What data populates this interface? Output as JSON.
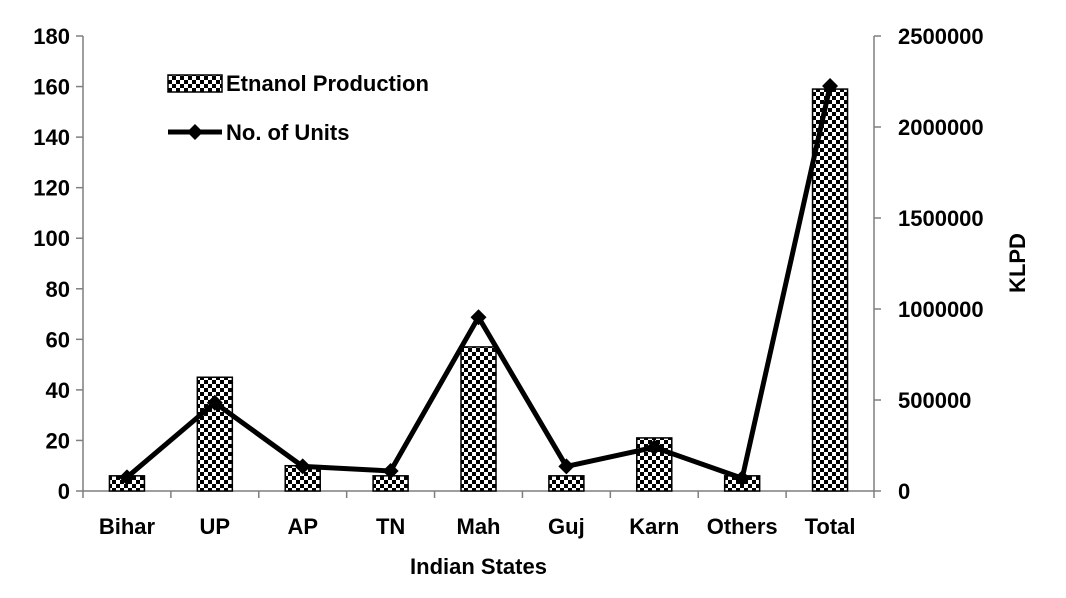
{
  "chart_data": {
    "type": "bar",
    "title": "",
    "xlabel": "Indian States",
    "ylabel": "",
    "y2label": "KLPD",
    "categories": [
      "Bihar",
      "UP",
      "AP",
      "TN",
      "Mah",
      "Guj",
      "Karn",
      "Others",
      "Total"
    ],
    "ylim": [
      0,
      180
    ],
    "y_ticks": [
      "0",
      "20",
      "40",
      "60",
      "80",
      "100",
      "120",
      "140",
      "160",
      "180"
    ],
    "y2lim": [
      0,
      2500000
    ],
    "y2_ticks": [
      "0",
      "500000",
      "1000000",
      "1500000",
      "2000000",
      "2500000"
    ],
    "legend": {
      "position": "top-left",
      "bars_label": "Etnanol Production",
      "line_label": "No. of Units"
    },
    "series": [
      {
        "name": "Etnanol Production",
        "kind": "bar",
        "axis": "left",
        "pattern": "checkerboard",
        "values": [
          6,
          45,
          10,
          6,
          57,
          6,
          21,
          6,
          159
        ]
      },
      {
        "name": "No. of Units",
        "kind": "line",
        "axis": "right",
        "marker": "diamond",
        "values": [
          75000,
          485000,
          135000,
          110000,
          955000,
          135000,
          240000,
          70000,
          2225000
        ]
      }
    ],
    "colors": {
      "bar_fill": "#000000",
      "bar_bg": "#ffffff",
      "line": "#000000"
    }
  }
}
